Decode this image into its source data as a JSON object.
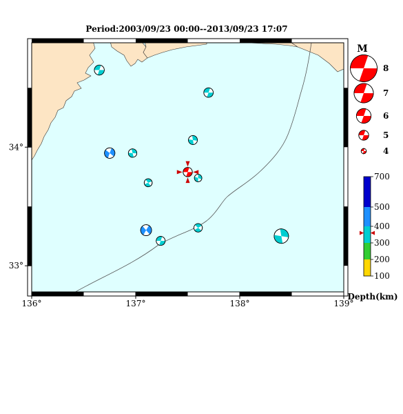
{
  "title": "Period:2003/09/23 00:00--2013/09/23 17:07",
  "axes": {
    "x_ticks": [
      "136°",
      "137°",
      "138°",
      "139°"
    ],
    "y_ticks": [
      "34°",
      "33°"
    ],
    "lon_range": [
      136,
      139
    ],
    "lat_range": [
      32.78,
      34.88
    ]
  },
  "colors": {
    "sea": "#dfffff",
    "land": "#fde5c4",
    "ocean_line": "#555555",
    "mag_mech": "#ff0000"
  },
  "magnitude_legend": {
    "title": "M",
    "items": [
      {
        "label": "8",
        "mag": 8
      },
      {
        "label": "7",
        "mag": 7
      },
      {
        "label": "6",
        "mag": 6
      },
      {
        "label": "5",
        "mag": 5
      },
      {
        "label": "4",
        "mag": 4
      }
    ]
  },
  "depth_scale": {
    "title": "Depth(km)",
    "ticks": [
      "700",
      "500",
      "400",
      "300",
      "200",
      "100"
    ],
    "bands": [
      {
        "from": 100,
        "to": 200,
        "color": "#ffd700"
      },
      {
        "from": 200,
        "to": 300,
        "color": "#32cd32"
      },
      {
        "from": 300,
        "to": 400,
        "color": "#00ced1"
      },
      {
        "from": 400,
        "to": 500,
        "color": "#1e90ff"
      },
      {
        "from": 500,
        "to": 700,
        "color": "#0000cd"
      }
    ],
    "marker_depth": 360
  },
  "chart_data": {
    "type": "scatter",
    "title": "Period:2003/09/23 00:00--2013/09/23 17:07",
    "xlabel": "",
    "ylabel": "",
    "xlim": [
      136,
      139
    ],
    "ylim": [
      32.78,
      34.88
    ],
    "events": [
      {
        "lon": 136.65,
        "lat": 34.65,
        "mag": 4.9,
        "depth": 360,
        "rot": 20
      },
      {
        "lon": 137.7,
        "lat": 34.46,
        "mag": 4.8,
        "depth": 360,
        "rot": 200
      },
      {
        "lon": 137.55,
        "lat": 34.06,
        "mag": 4.7,
        "depth": 360,
        "rot": 100
      },
      {
        "lon": 136.75,
        "lat": 33.95,
        "mag": 5.0,
        "depth": 420,
        "rot": 130
      },
      {
        "lon": 136.97,
        "lat": 33.95,
        "mag": 4.6,
        "depth": 360,
        "rot": 95
      },
      {
        "lon": 137.12,
        "lat": 33.7,
        "mag": 4.5,
        "depth": 360,
        "rot": 70
      },
      {
        "lon": 137.6,
        "lat": 33.74,
        "mag": 4.4,
        "depth": 360,
        "rot": 110
      },
      {
        "lon": 137.1,
        "lat": 33.3,
        "mag": 5.1,
        "depth": 420,
        "rot": 140
      },
      {
        "lon": 137.24,
        "lat": 33.21,
        "mag": 4.7,
        "depth": 360,
        "rot": 20
      },
      {
        "lon": 137.6,
        "lat": 33.32,
        "mag": 4.6,
        "depth": 360,
        "rot": 60
      },
      {
        "lon": 138.4,
        "lat": 33.25,
        "mag": 5.8,
        "depth": 360,
        "rot": 100
      }
    ],
    "highlight_event": {
      "lon": 137.5,
      "lat": 33.79,
      "mag": 4.2,
      "rot": 200
    }
  }
}
